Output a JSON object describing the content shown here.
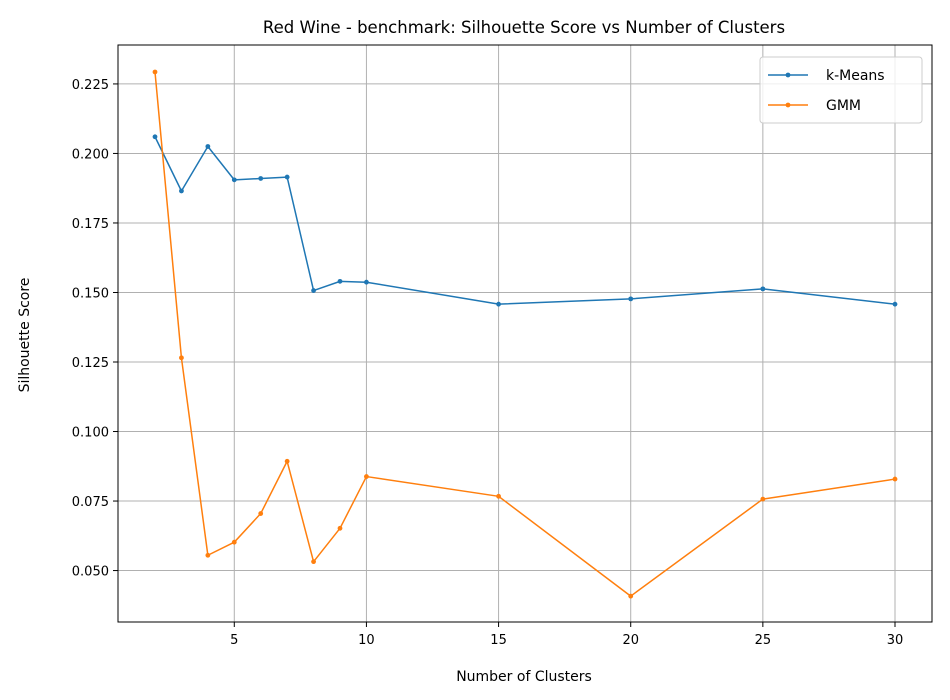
{
  "chart_data": {
    "type": "line",
    "title": "Red Wine - benchmark: Silhouette Score vs Number of Clusters",
    "xlabel": "Number of Clusters",
    "ylabel": "Silhouette Score",
    "xlim": [
      0.6,
      31.4
    ],
    "ylim": [
      0.0315,
      0.239
    ],
    "xticks": [
      5,
      10,
      15,
      20,
      25,
      30
    ],
    "yticks": [
      0.05,
      0.075,
      0.1,
      0.125,
      0.15,
      0.175,
      0.2,
      0.225
    ],
    "ytick_labels": [
      "0.050",
      "0.075",
      "0.100",
      "0.125",
      "0.150",
      "0.175",
      "0.200",
      "0.225"
    ],
    "grid": true,
    "legend_position": "top-right",
    "x": [
      2,
      3,
      4,
      5,
      6,
      7,
      8,
      9,
      10,
      15,
      20,
      25,
      30
    ],
    "series": [
      {
        "name": "k-Means",
        "color": "#1f77b4",
        "values": [
          0.206,
          0.1865,
          0.2025,
          0.1905,
          0.191,
          0.1915,
          0.1507,
          0.154,
          0.1537,
          0.1458,
          0.1477,
          0.1513,
          0.1458
        ]
      },
      {
        "name": "GMM",
        "color": "#ff7f0e",
        "values": [
          0.2293,
          0.1265,
          0.0555,
          0.0602,
          0.0705,
          0.0893,
          0.0532,
          0.0652,
          0.0838,
          0.0767,
          0.0408,
          0.0757,
          0.0829
        ]
      }
    ]
  }
}
